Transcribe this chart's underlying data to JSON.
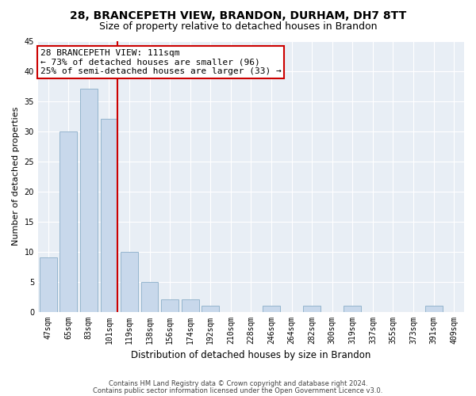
{
  "title1": "28, BRANCEPETH VIEW, BRANDON, DURHAM, DH7 8TT",
  "title2": "Size of property relative to detached houses in Brandon",
  "xlabel": "Distribution of detached houses by size in Brandon",
  "ylabel": "Number of detached properties",
  "categories": [
    "47sqm",
    "65sqm",
    "83sqm",
    "101sqm",
    "119sqm",
    "138sqm",
    "156sqm",
    "174sqm",
    "192sqm",
    "210sqm",
    "228sqm",
    "246sqm",
    "264sqm",
    "282sqm",
    "300sqm",
    "319sqm",
    "337sqm",
    "355sqm",
    "373sqm",
    "391sqm",
    "409sqm"
  ],
  "values": [
    9,
    30,
    37,
    32,
    10,
    5,
    2,
    2,
    1,
    0,
    0,
    1,
    0,
    1,
    0,
    1,
    0,
    0,
    0,
    1,
    0
  ],
  "bar_color": "#c8d8eb",
  "bar_edge_color": "#8aaec8",
  "vline_color": "#cc0000",
  "annotation_line1": "28 BRANCEPETH VIEW: 111sqm",
  "annotation_line2": "← 73% of detached houses are smaller (96)",
  "annotation_line3": "25% of semi-detached houses are larger (33) →",
  "annotation_box_color": "#ffffff",
  "annotation_box_edge": "#cc0000",
  "ylim": [
    0,
    45
  ],
  "yticks": [
    0,
    5,
    10,
    15,
    20,
    25,
    30,
    35,
    40,
    45
  ],
  "background_color": "#e8eef5",
  "footer1": "Contains HM Land Registry data © Crown copyright and database right 2024.",
  "footer2": "Contains public sector information licensed under the Open Government Licence v3.0.",
  "title1_fontsize": 10,
  "title2_fontsize": 9,
  "tick_fontsize": 7,
  "ylabel_fontsize": 8,
  "xlabel_fontsize": 8.5,
  "annotation_fontsize": 8,
  "footer_fontsize": 6
}
